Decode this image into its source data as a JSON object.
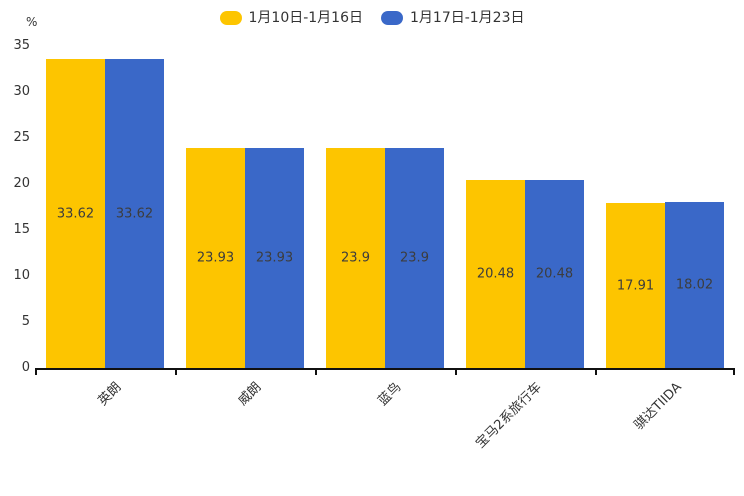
{
  "legend": {
    "items": [
      {
        "label": "1月10日-1月16日",
        "color": "#FDC500"
      },
      {
        "label": "1月17日-1月23日",
        "color": "#3A68C8"
      }
    ]
  },
  "chart_data": {
    "type": "bar",
    "categories": [
      "英朗",
      "威朗",
      "蓝鸟",
      "宝马2系旅行车",
      "骐达TIIDA"
    ],
    "series": [
      {
        "name": "1月10日-1月16日",
        "color": "#FDC500",
        "values": [
          33.62,
          23.93,
          23.9,
          20.48,
          17.91
        ]
      },
      {
        "name": "1月17日-1月23日",
        "color": "#3A68C8",
        "values": [
          33.62,
          23.93,
          23.9,
          20.48,
          18.02
        ]
      }
    ],
    "title": "",
    "xlabel": "",
    "ylabel": "%",
    "ylim": [
      0,
      35
    ],
    "y_ticks": [
      0,
      5,
      10,
      15,
      20,
      25,
      30,
      35
    ],
    "grid": false,
    "legend_position": "top",
    "value_labels": "inside-center",
    "axis_color": "#111111",
    "label_color": "#333333"
  }
}
